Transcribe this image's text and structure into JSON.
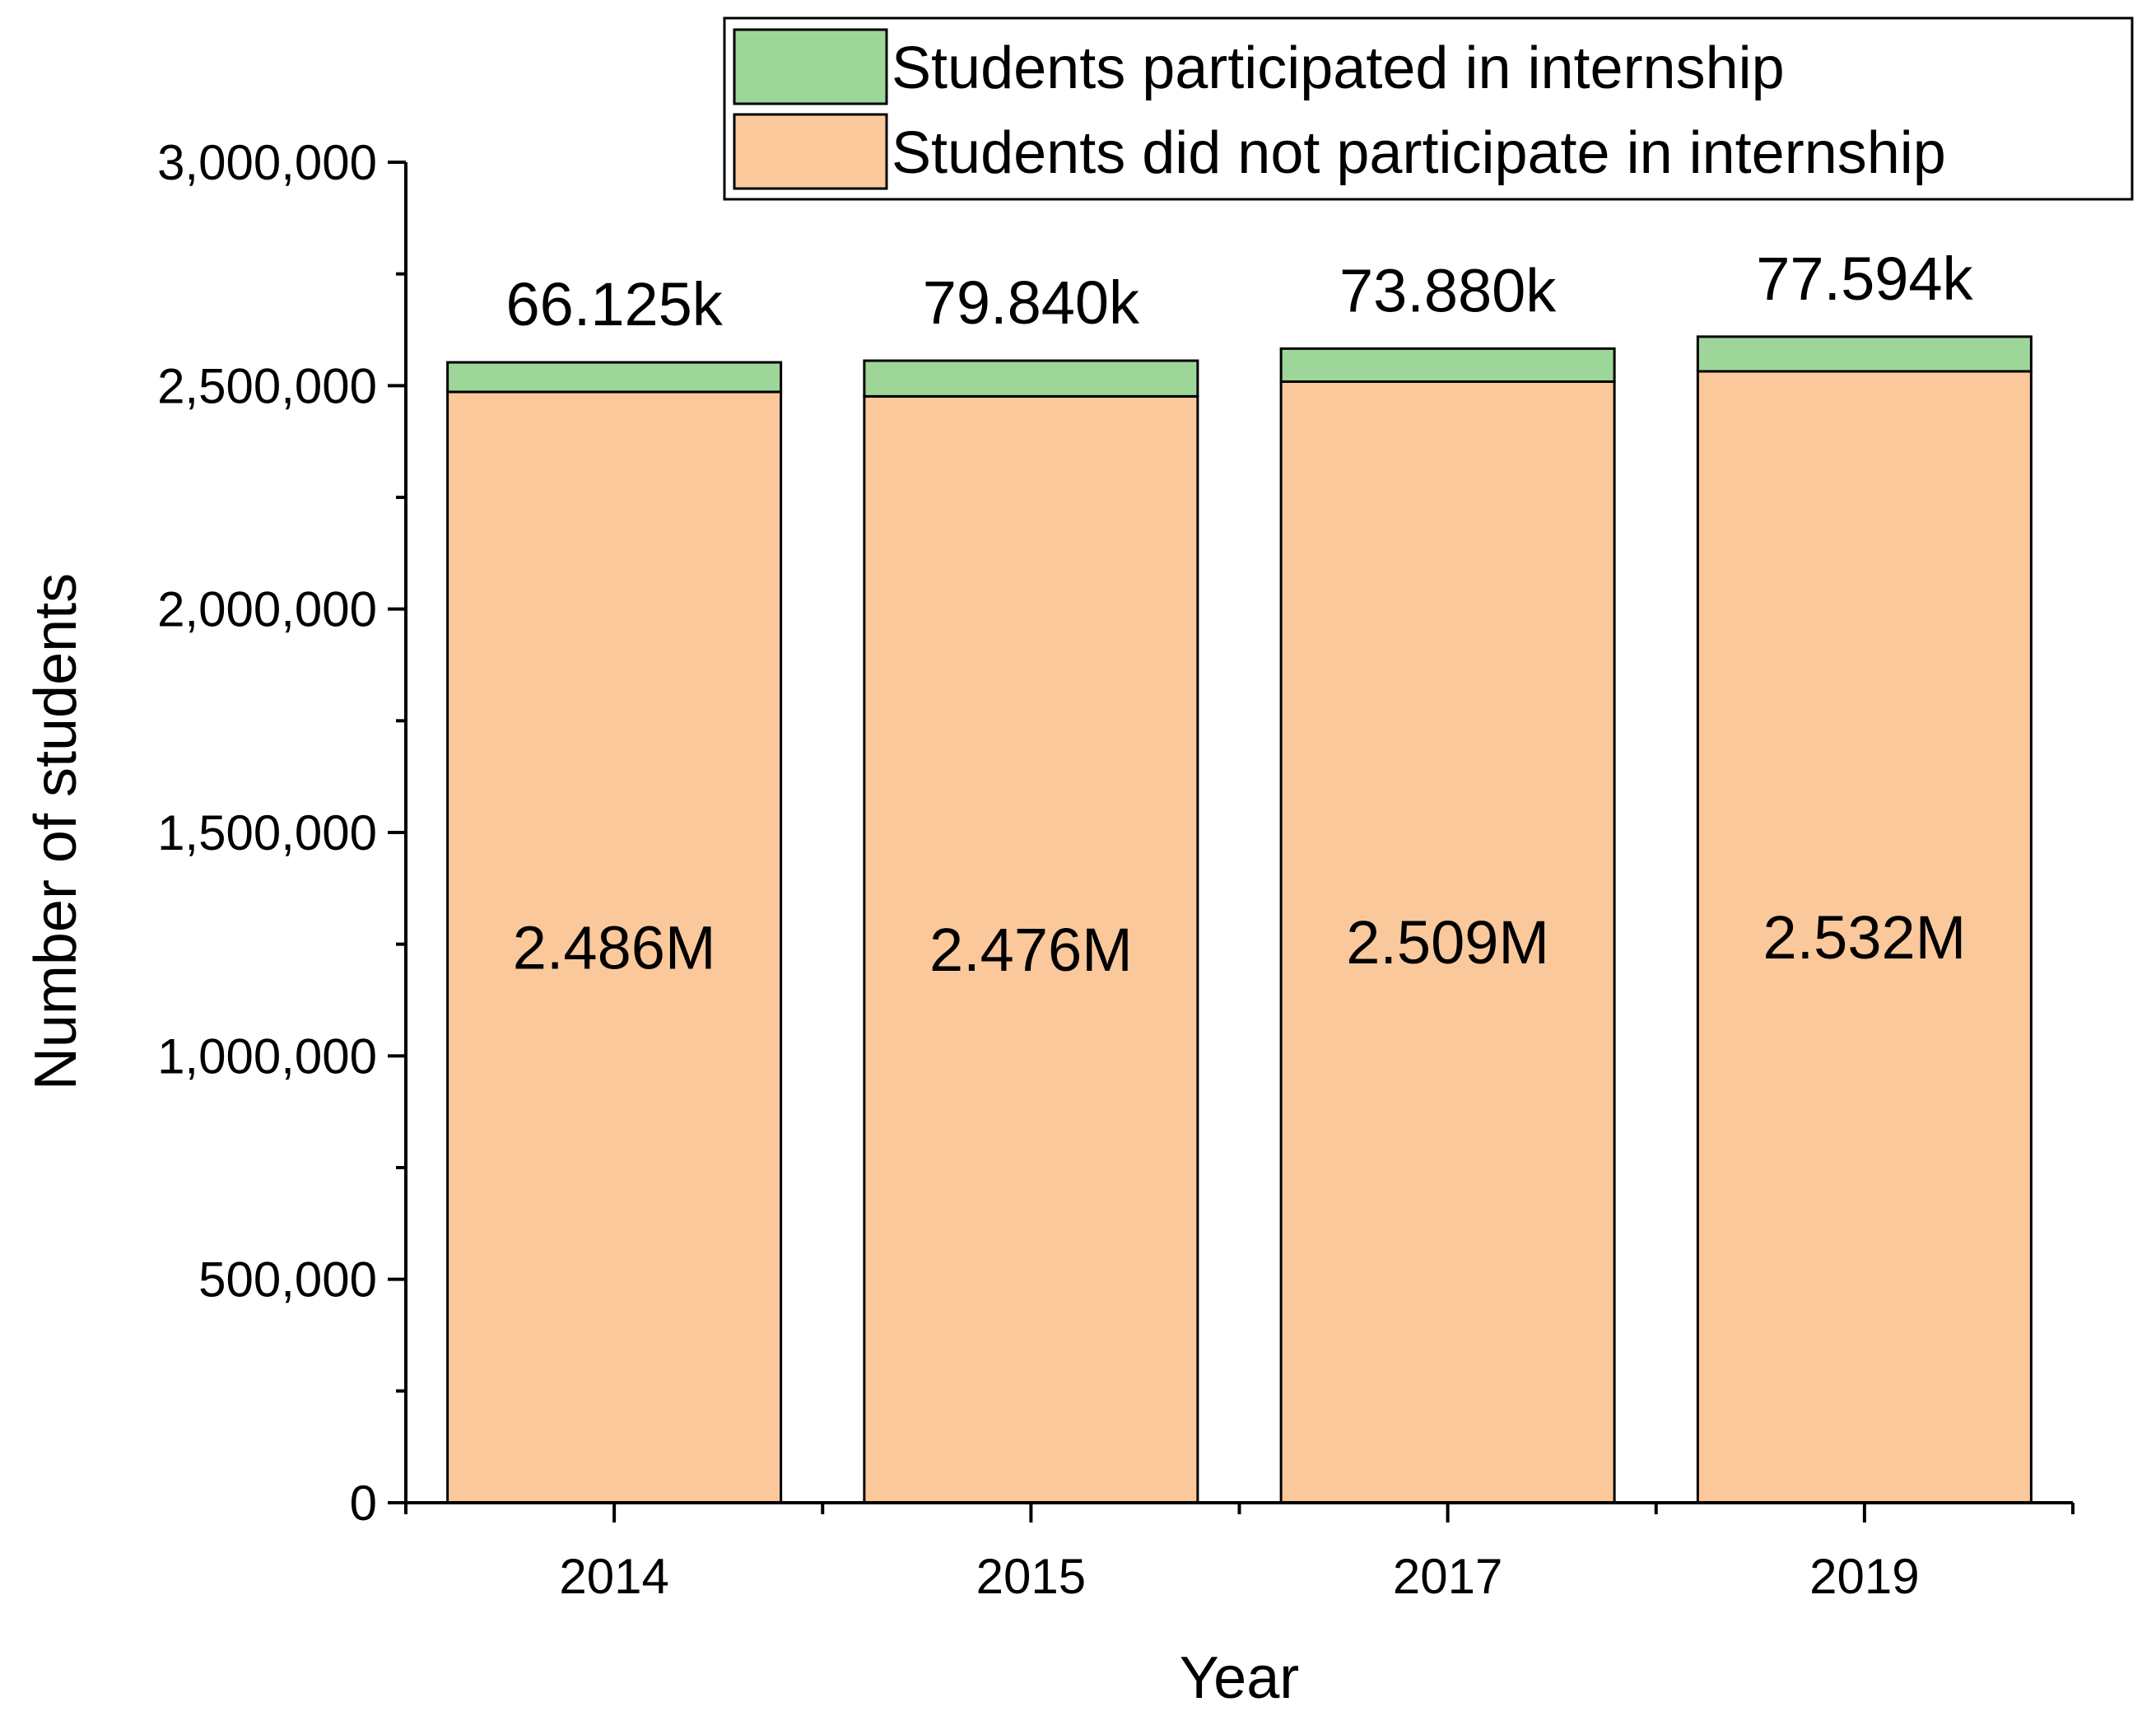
{
  "chart_data": {
    "type": "bar",
    "stacked": true,
    "title": "",
    "xlabel": "Year",
    "ylabel": "Number of students",
    "ylim": [
      0,
      3000000
    ],
    "yticks": [
      0,
      500000,
      1000000,
      1500000,
      2000000,
      2500000,
      3000000
    ],
    "ytick_labels": [
      "0",
      "500,000",
      "1,000,000",
      "1,500,000",
      "2,000,000",
      "2,500,000",
      "3,000,000"
    ],
    "categories": [
      "2014",
      "2015",
      "2017",
      "2019"
    ],
    "series": [
      {
        "name": "Students did not participate in internship",
        "color": "#FAC89A",
        "values": [
          2486000,
          2476000,
          2509000,
          2532000
        ],
        "labels": [
          "2.486M",
          "2.476M",
          "2.509M",
          "2.532M"
        ]
      },
      {
        "name": "Students participated in internship",
        "color": "#9ED69A",
        "values": [
          66125,
          79840,
          73880,
          77594
        ],
        "labels": [
          "66.125k",
          "79.840k",
          "73.880k",
          "77.594k"
        ]
      }
    ],
    "legend": {
      "position": "top-right",
      "order": [
        "Students participated in internship",
        "Students did not participate in internship"
      ]
    },
    "grid": false
  }
}
